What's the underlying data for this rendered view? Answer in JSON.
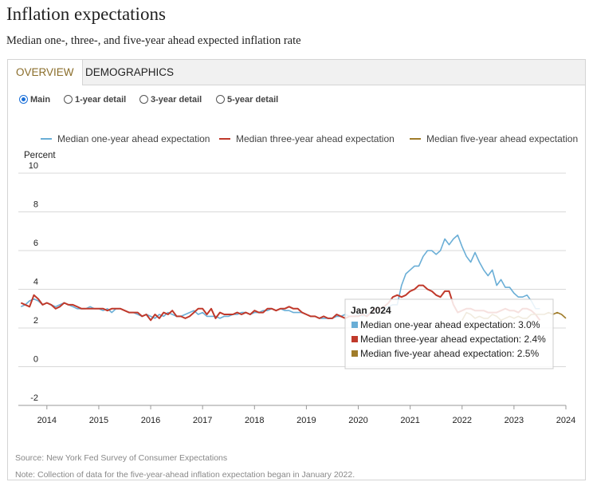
{
  "page": {
    "title": "Inflation expectations",
    "subtitle": "Median one-, three-, and five-year ahead expected inflation rate"
  },
  "tabs": [
    {
      "label": "OVERVIEW",
      "active": true
    },
    {
      "label": "DEMOGRAPHICS",
      "active": false
    }
  ],
  "radios": [
    {
      "label": "Main",
      "selected": true
    },
    {
      "label": "1-year detail",
      "selected": false
    },
    {
      "label": "3-year detail",
      "selected": false
    },
    {
      "label": "5-year detail",
      "selected": false
    }
  ],
  "chart_data": {
    "type": "line",
    "ylabel": "Percent",
    "ylim": [
      -2,
      10
    ],
    "yticks": [
      -2,
      0,
      2,
      4,
      6,
      8,
      10
    ],
    "xlim": [
      2013.45,
      2024.0
    ],
    "xticks": [
      "2014",
      "2015",
      "2016",
      "2017",
      "2018",
      "2019",
      "2020",
      "2021",
      "2022",
      "2023",
      "2024"
    ],
    "grid": true,
    "legend_position": "top",
    "series": [
      {
        "name": "Median one-year ahead expectation",
        "color": "#6aaed6",
        "start": 2013.5,
        "step": 0.0833333,
        "values": [
          3.1,
          3.2,
          3.4,
          3.5,
          3.4,
          3.2,
          3.3,
          3.2,
          3.1,
          3.2,
          3.3,
          3.2,
          3.1,
          3.0,
          3.0,
          3.0,
          3.1,
          3.0,
          3.0,
          2.9,
          3.0,
          2.8,
          3.0,
          3.0,
          2.9,
          2.8,
          2.8,
          2.7,
          2.6,
          2.7,
          2.6,
          2.5,
          2.7,
          2.6,
          2.8,
          2.7,
          2.6,
          2.6,
          2.7,
          2.8,
          2.9,
          2.7,
          2.8,
          2.6,
          2.6,
          2.6,
          2.5,
          2.6,
          2.6,
          2.7,
          2.7,
          2.8,
          2.8,
          2.7,
          2.8,
          2.8,
          2.9,
          2.9,
          3.0,
          2.9,
          3.0,
          2.9,
          2.9,
          2.8,
          2.8,
          2.8,
          2.7,
          2.6,
          2.6,
          2.5,
          2.5,
          2.5,
          2.5,
          2.6,
          2.6,
          2.7,
          2.6,
          2.6,
          2.7,
          2.6,
          2.7,
          2.8,
          2.9,
          3.0,
          3.0,
          3.1,
          3.2,
          3.2,
          4.2,
          4.8,
          5.0,
          5.2,
          5.2,
          5.7,
          6.0,
          6.0,
          5.8,
          6.0,
          6.6,
          6.3,
          6.6,
          6.8,
          6.2,
          5.7,
          5.4,
          5.9,
          5.4,
          5.0,
          4.7,
          5.0,
          4.2,
          4.5,
          4.1,
          4.1,
          3.8,
          3.6,
          3.6,
          3.7,
          3.4,
          3.0,
          3.0
        ]
      },
      {
        "name": "Median three-year ahead expectation",
        "color": "#c0392b",
        "start": 2013.5,
        "step": 0.0833333,
        "values": [
          3.3,
          3.2,
          3.1,
          3.7,
          3.5,
          3.2,
          3.3,
          3.2,
          3.0,
          3.1,
          3.3,
          3.2,
          3.2,
          3.1,
          3.0,
          3.0,
          3.0,
          3.0,
          3.0,
          3.0,
          2.9,
          3.0,
          3.0,
          3.0,
          2.9,
          2.8,
          2.8,
          2.8,
          2.6,
          2.7,
          2.4,
          2.7,
          2.5,
          2.8,
          2.7,
          2.9,
          2.6,
          2.6,
          2.5,
          2.6,
          2.8,
          3.0,
          3.0,
          2.7,
          3.0,
          2.5,
          2.8,
          2.7,
          2.7,
          2.7,
          2.8,
          2.7,
          2.8,
          2.7,
          2.9,
          2.8,
          2.8,
          3.0,
          3.0,
          2.9,
          3.0,
          3.0,
          3.1,
          3.0,
          3.0,
          2.8,
          2.7,
          2.6,
          2.6,
          2.5,
          2.6,
          2.5,
          2.5,
          2.7,
          2.6,
          2.5,
          2.6,
          2.6,
          2.6,
          2.7,
          2.6,
          2.8,
          3.0,
          3.0,
          3.1,
          3.3,
          3.6,
          3.7,
          3.6,
          3.7,
          3.9,
          4.0,
          4.2,
          4.2,
          4.0,
          3.9,
          3.7,
          3.6,
          3.9,
          3.9,
          3.2,
          2.8,
          2.9,
          3.0,
          3.0,
          2.9,
          2.9,
          2.9,
          2.8,
          2.8,
          2.8,
          2.9,
          3.0,
          2.9,
          2.9,
          2.8,
          3.0,
          3.0,
          2.9,
          2.7,
          2.4
        ]
      },
      {
        "name": "Median five-year ahead expectation",
        "color": "#a07c2a",
        "start": 2022.0,
        "step": 0.0833333,
        "values": [
          2.4,
          2.8,
          2.7,
          2.5,
          2.6,
          2.5,
          2.5,
          2.7,
          2.6,
          2.4,
          2.5,
          2.6,
          2.5,
          2.6,
          2.5,
          2.5,
          2.7,
          2.7,
          2.7,
          2.7,
          2.8,
          2.7,
          2.8,
          2.7,
          2.5
        ]
      }
    ],
    "tooltip": {
      "title": "Jan 2024",
      "rows": [
        {
          "label": "Median one-year ahead expectation: 3.0%",
          "color": "#6aaed6"
        },
        {
          "label": "Median three-year ahead expectation: 2.4%",
          "color": "#c0392b"
        },
        {
          "label": "Median five-year ahead expectation: 2.5%",
          "color": "#a07c2a"
        }
      ]
    }
  },
  "footer": {
    "source": "Source: New York Fed Survey of Consumer Expectations",
    "note": "Note: Collection of data for the five-year-ahead inflation expectation began in January 2022."
  }
}
